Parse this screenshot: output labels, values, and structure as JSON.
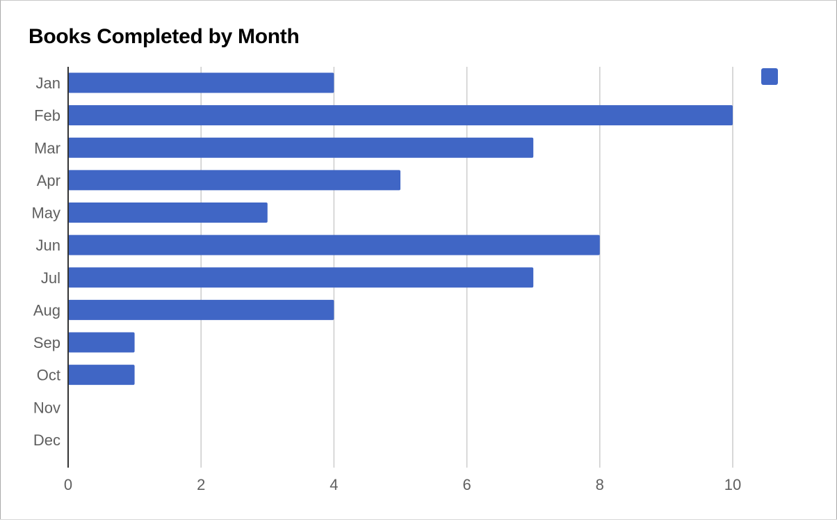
{
  "chart_data": {
    "type": "bar",
    "orientation": "horizontal",
    "title": "Books Completed by Month",
    "categories": [
      "Jan",
      "Feb",
      "Mar",
      "Apr",
      "May",
      "Jun",
      "Jul",
      "Aug",
      "Sep",
      "Oct",
      "Nov",
      "Dec"
    ],
    "series": [
      {
        "values": [
          4,
          10,
          7,
          5,
          3,
          8,
          7,
          4,
          1,
          1,
          0,
          0
        ]
      }
    ],
    "xlim": [
      0,
      11.5
    ],
    "xticks": [
      0,
      2,
      4,
      6,
      8,
      10
    ],
    "xlabel": "",
    "ylabel": "",
    "grid": true,
    "legend_position": "top-right",
    "colors": {
      "bar": "#4066c5",
      "grid": "#cccccc",
      "axis": "#333333",
      "tick_text": "#5f5f5f"
    }
  }
}
